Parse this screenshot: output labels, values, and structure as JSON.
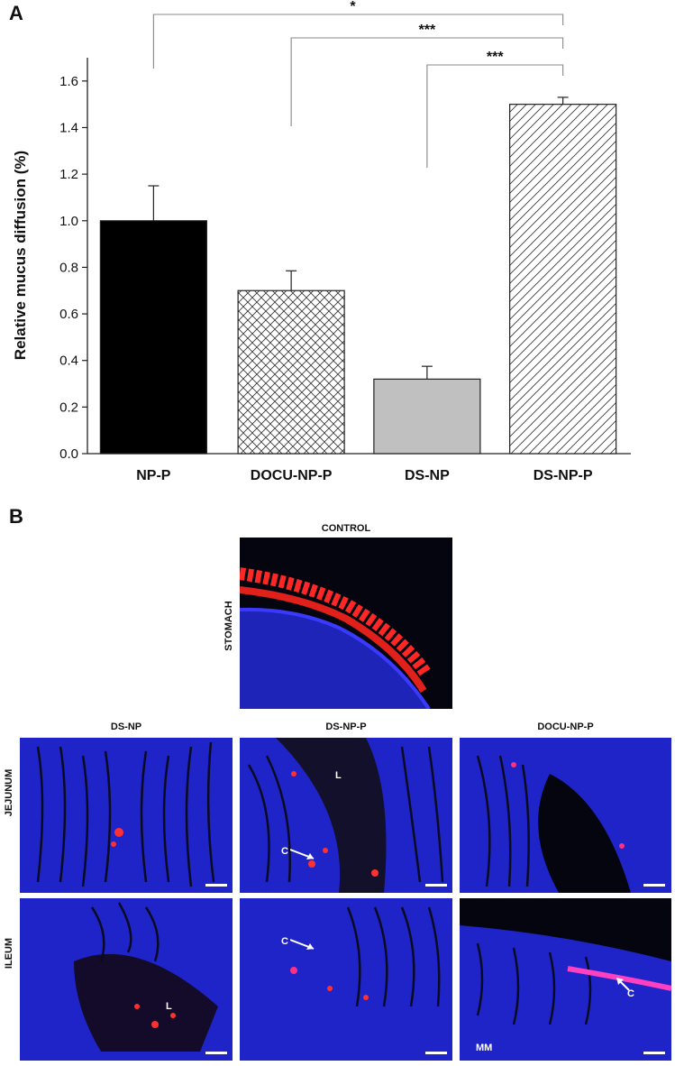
{
  "panels": {
    "a": "A",
    "b": "B"
  },
  "chart_data": {
    "type": "bar",
    "categories": [
      "NP-P",
      "DOCU-NP-P",
      "DS-NP",
      "DS-NP-P"
    ],
    "values": [
      1.0,
      0.7,
      0.32,
      1.5
    ],
    "errors": [
      0.15,
      0.085,
      0.055,
      0.03
    ],
    "bar_styles": [
      "solid-black",
      "crosshatch",
      "solid-gray",
      "diagonal-hatch"
    ],
    "colors": {
      "bar_black": "#000000",
      "bar_gray": "#c0c0c0",
      "hatch": "#333333"
    },
    "title": "",
    "xlabel": "",
    "ylabel": "Relative mucus diffusion (%)",
    "ylim": [
      0,
      1.7
    ],
    "yticks": [
      "0.0",
      "0.2",
      "0.4",
      "0.6",
      "0.8",
      "1.0",
      "1.2",
      "1.4",
      "1.6"
    ],
    "grid": false,
    "significance": [
      {
        "from": "NP-P",
        "to": "DS-NP-P",
        "label": "*"
      },
      {
        "from": "DOCU-NP-P",
        "to": "DS-NP-P",
        "label": "***"
      },
      {
        "from": "DS-NP",
        "to": "DS-NP-P",
        "label": "***"
      }
    ]
  },
  "micrographs": {
    "control_title": "CONTROL",
    "control_row": "STOMACH",
    "columns": [
      "DS-NP",
      "DS-NP-P",
      "DOCU-NP-P"
    ],
    "rows": [
      "JEJUNUM",
      "ILEUM"
    ],
    "annotations": {
      "lumen": "L",
      "crypt": "C",
      "muscularis": "MM"
    },
    "colors": {
      "nuclei": "#2a2ae0",
      "mucus": "#ff2020",
      "background": "#05050f"
    }
  }
}
